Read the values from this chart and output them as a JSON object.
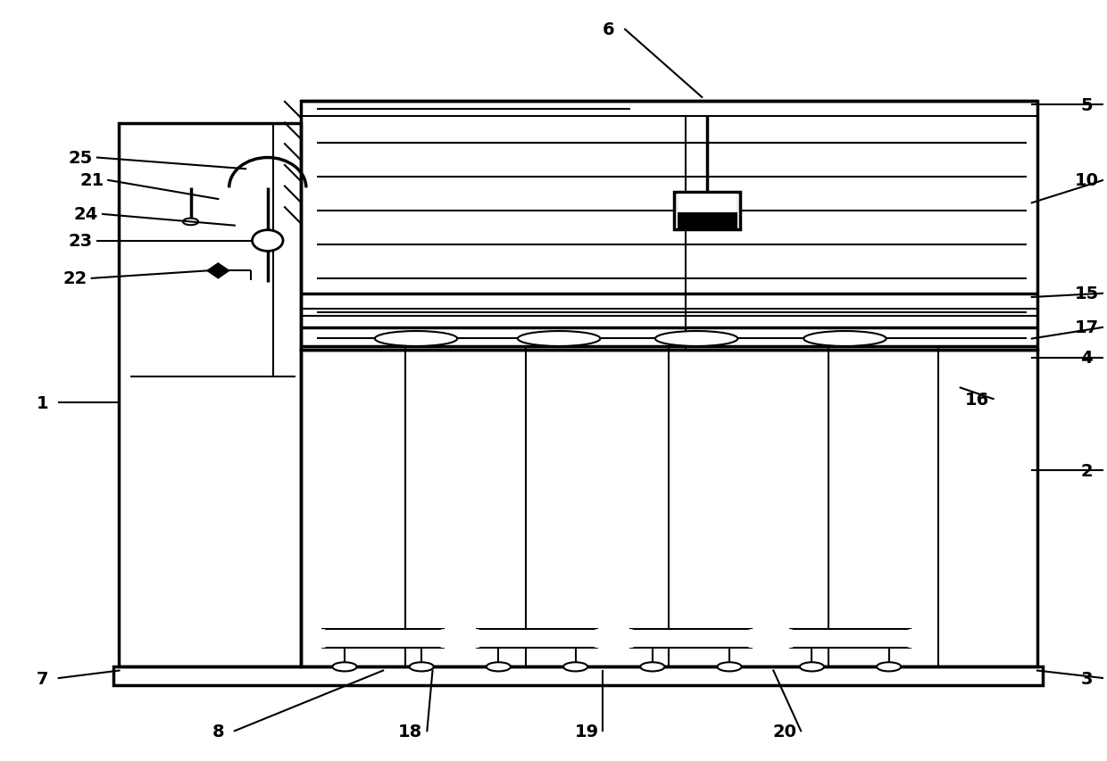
{
  "bg": "#ffffff",
  "lc": "#000000",
  "lw": 1.5,
  "tlw": 2.5,
  "fig_w": 12.4,
  "fig_h": 8.54,
  "annotations": [
    [
      "1",
      3.5,
      47.0,
      10.5,
      47.0
    ],
    [
      "2",
      98.5,
      38.0,
      93.5,
      38.0
    ],
    [
      "3",
      98.5,
      10.5,
      94.0,
      11.5
    ],
    [
      "4",
      98.5,
      53.0,
      93.5,
      53.0
    ],
    [
      "5",
      98.5,
      86.5,
      93.5,
      86.5
    ],
    [
      "6",
      55.0,
      96.5,
      63.5,
      87.5
    ],
    [
      "7",
      3.5,
      10.5,
      10.5,
      11.5
    ],
    [
      "8",
      19.5,
      3.5,
      34.5,
      11.5
    ],
    [
      "10",
      98.5,
      76.5,
      93.5,
      73.5
    ],
    [
      "15",
      98.5,
      61.5,
      93.5,
      61.0
    ],
    [
      "16",
      88.5,
      47.5,
      87.0,
      49.0
    ],
    [
      "17",
      98.5,
      57.0,
      93.5,
      55.5
    ],
    [
      "18",
      37.0,
      3.5,
      39.0,
      11.5
    ],
    [
      "19",
      53.0,
      3.5,
      54.5,
      11.5
    ],
    [
      "20",
      71.0,
      3.5,
      70.0,
      11.5
    ],
    [
      "21",
      8.0,
      76.5,
      19.5,
      74.0
    ],
    [
      "22",
      6.5,
      63.5,
      18.5,
      64.5
    ],
    [
      "23",
      7.0,
      68.5,
      22.5,
      68.5
    ],
    [
      "24",
      7.5,
      72.0,
      21.0,
      70.5
    ],
    [
      "25",
      7.0,
      79.5,
      22.0,
      78.0
    ]
  ]
}
